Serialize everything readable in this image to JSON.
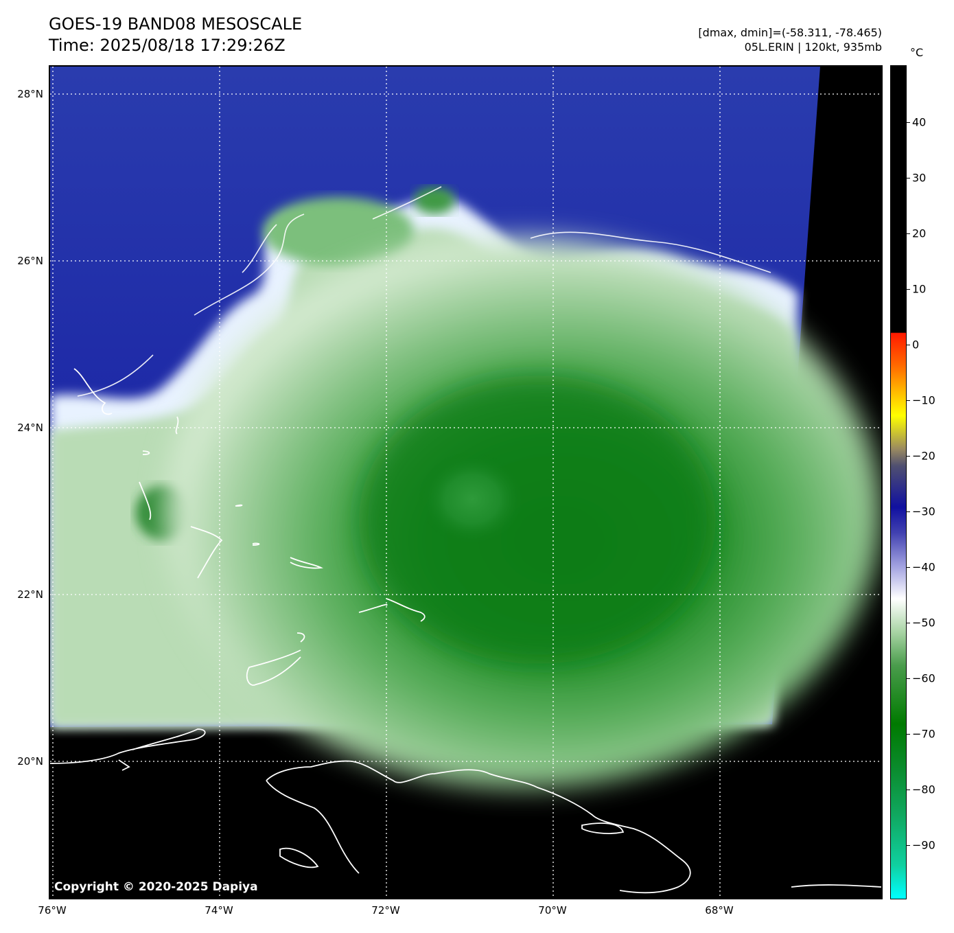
{
  "header": {
    "title_line1": "GOES-19 BAND08 MESOSCALE",
    "title_line2": "Time: 2025/08/18 17:29:26Z",
    "dminmax": "[dmax, dmin]=(-58.311, -78.465)",
    "storm": "05L.ERIN | 120kt, 935mb"
  },
  "map": {
    "copyright": "Copyright © 2020-2025 Dapiya",
    "lat_labels": [
      "28°N",
      "26°N",
      "24°N",
      "22°N",
      "20°N"
    ],
    "lon_labels": [
      "76°W",
      "74°W",
      "72°W",
      "70°W",
      "68°W"
    ]
  },
  "colorbar": {
    "unit": "°C",
    "ticks": [
      "40",
      "30",
      "20",
      "10",
      "0",
      "−10",
      "−20",
      "−30",
      "−40",
      "−50",
      "−60",
      "−70",
      "−80",
      "−90"
    ],
    "colors": {
      "warm": "#000000",
      "cold_low": "#00ffff",
      "green": "#007a00",
      "white": "#ffffff",
      "blue": "#1010a0",
      "red": "#ff1a00",
      "yellow": "#ffff00"
    }
  }
}
